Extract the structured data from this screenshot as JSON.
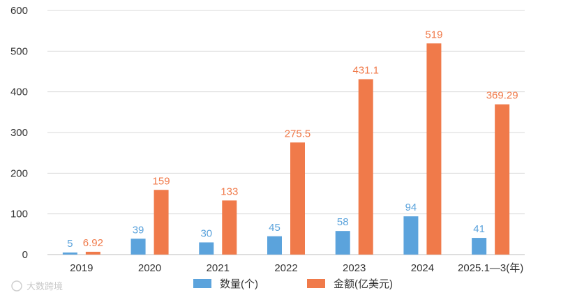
{
  "chart_data": {
    "type": "bar",
    "title": "",
    "xlabel": "",
    "ylabel": "",
    "ylim": [
      0,
      600
    ],
    "yticks": [
      0,
      100,
      200,
      300,
      400,
      500,
      600
    ],
    "grid": true,
    "categories": [
      "2019",
      "2020",
      "2021",
      "2022",
      "2023",
      "2024",
      "2025.1—3(年)"
    ],
    "series": [
      {
        "name": "数量(个)",
        "color": "#5ba3dc",
        "values": [
          5,
          39,
          30,
          45,
          58,
          94,
          41
        ],
        "labels": [
          "5",
          "39",
          "30",
          "45",
          "58",
          "94",
          "41"
        ]
      },
      {
        "name": "金额(亿美元)",
        "color": "#f07a4a",
        "values": [
          6.92,
          159,
          133,
          275.5,
          431.1,
          519,
          369.29
        ],
        "labels": [
          "6.92",
          "159",
          "133",
          "275.5",
          "431.1",
          "519",
          "369.29"
        ]
      }
    ],
    "legend_position": "bottom-center",
    "watermark": "大数跨境"
  }
}
